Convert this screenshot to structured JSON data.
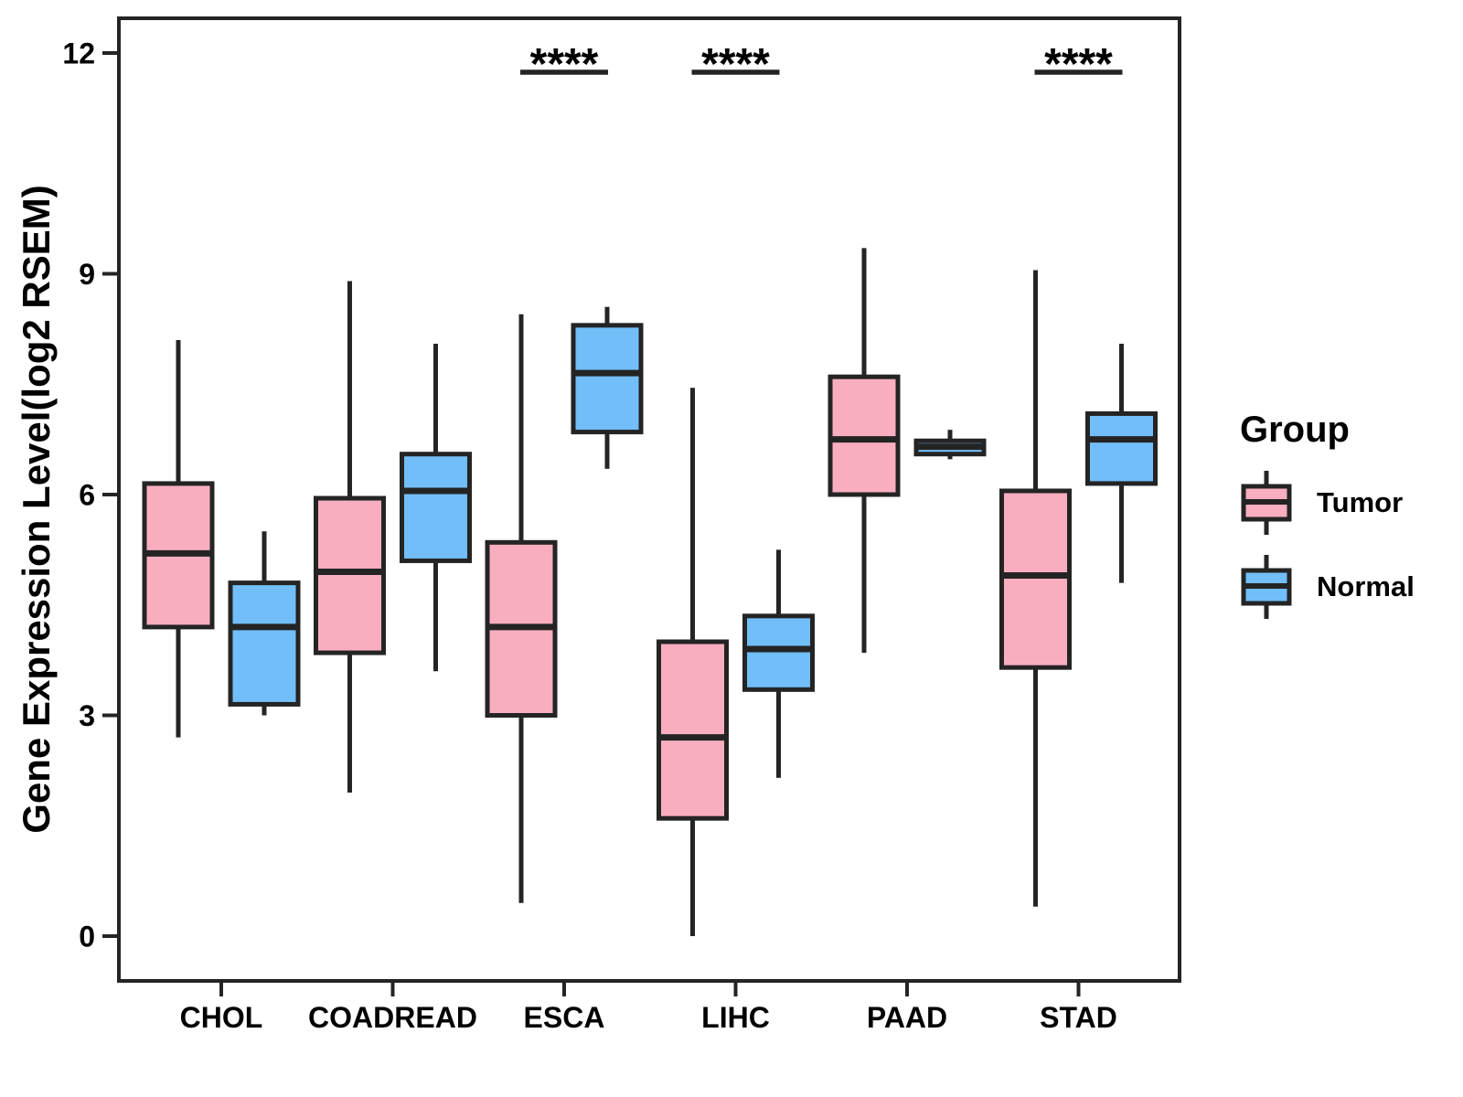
{
  "chart_data": {
    "type": "box",
    "title": "",
    "xlabel": "",
    "ylabel": "Gene Expression Level(log2 RSEM)",
    "ylim": [
      0,
      12
    ],
    "yticks": [
      "12",
      "9",
      "6",
      "3",
      "0"
    ],
    "ytick_values": [
      12,
      9,
      6,
      3,
      0
    ],
    "grid": false,
    "legend_title": "Group",
    "legend_position": "right",
    "categories": [
      "CHOL",
      "COADREAD",
      "ESCA",
      "LIHC",
      "PAAD",
      "STAD"
    ],
    "box_keys": [
      "min",
      "q1",
      "median",
      "q3",
      "max"
    ],
    "series": [
      {
        "name": "Tumor",
        "color": "#F9AEC0",
        "boxes": [
          [
            2.7,
            4.2,
            5.2,
            6.15,
            8.1
          ],
          [
            1.95,
            3.85,
            4.95,
            5.95,
            8.9
          ],
          [
            0.45,
            3.0,
            4.2,
            5.35,
            8.45
          ],
          [
            0.0,
            1.6,
            2.7,
            4.0,
            7.45
          ],
          [
            3.85,
            6.0,
            6.75,
            7.6,
            9.35
          ],
          [
            0.4,
            3.65,
            4.9,
            6.05,
            9.05
          ]
        ]
      },
      {
        "name": "Normal",
        "color": "#72BEF8",
        "boxes": [
          [
            3.0,
            3.15,
            4.2,
            4.8,
            5.5
          ],
          [
            3.6,
            5.1,
            6.05,
            6.55,
            8.05
          ],
          [
            6.35,
            6.85,
            7.65,
            8.3,
            8.55
          ],
          [
            2.15,
            3.35,
            3.9,
            4.35,
            5.25
          ],
          [
            6.48,
            6.55,
            6.65,
            6.73,
            6.88
          ],
          [
            4.8,
            6.15,
            6.75,
            7.1,
            8.05
          ]
        ]
      }
    ],
    "significance": [
      {
        "category": "ESCA",
        "label": "****"
      },
      {
        "category": "LIHC",
        "label": "****"
      },
      {
        "category": "STAD",
        "label": "****"
      }
    ]
  },
  "colors": {
    "tumor_fill": "#F9AEC0",
    "normal_fill": "#72BEF8",
    "stroke": "#242424",
    "text": "#000000",
    "background": "#FFFFFF"
  }
}
